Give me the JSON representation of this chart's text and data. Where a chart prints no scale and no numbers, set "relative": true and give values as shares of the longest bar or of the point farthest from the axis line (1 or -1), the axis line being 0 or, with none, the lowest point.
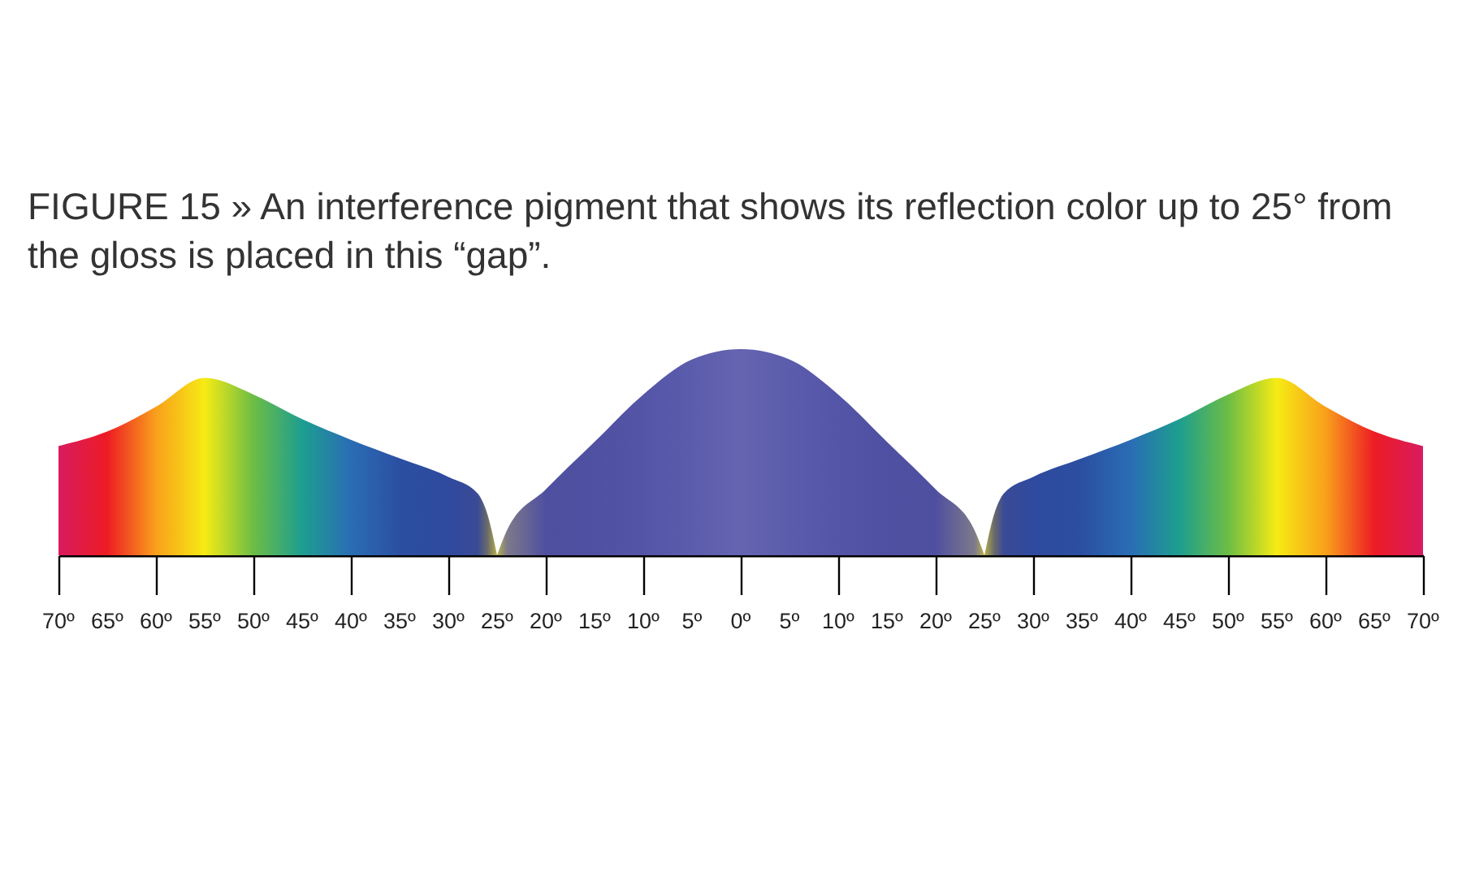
{
  "chart_data": {
    "type": "area",
    "title": "FIGURE 15 » An interference pigment that shows its reflection color up to 25° from the gloss is placed in this “gap”.",
    "relative": true,
    "xlim": [
      -70,
      70
    ],
    "xticks": [
      {
        "value": -70,
        "label": "70º"
      },
      {
        "value": -65,
        "label": "65º"
      },
      {
        "value": -60,
        "label": "60º"
      },
      {
        "value": -55,
        "label": "55º"
      },
      {
        "value": -50,
        "label": "50º"
      },
      {
        "value": -45,
        "label": "45º"
      },
      {
        "value": -40,
        "label": "40º"
      },
      {
        "value": -35,
        "label": "35º"
      },
      {
        "value": -30,
        "label": "30º"
      },
      {
        "value": -25,
        "label": "25º"
      },
      {
        "value": -20,
        "label": "20º"
      },
      {
        "value": -15,
        "label": "15º"
      },
      {
        "value": -10,
        "label": "10º"
      },
      {
        "value": -5,
        "label": "5º"
      },
      {
        "value": 0,
        "label": "0º"
      },
      {
        "value": 5,
        "label": "5º"
      },
      {
        "value": 10,
        "label": "10º"
      },
      {
        "value": 15,
        "label": "15º"
      },
      {
        "value": 20,
        "label": "20º"
      },
      {
        "value": 25,
        "label": "25º"
      },
      {
        "value": 30,
        "label": "30º"
      },
      {
        "value": 35,
        "label": "35º"
      },
      {
        "value": 40,
        "label": "40º"
      },
      {
        "value": 45,
        "label": "45º"
      },
      {
        "value": 50,
        "label": "50º"
      },
      {
        "value": 55,
        "label": "55º"
      },
      {
        "value": 60,
        "label": "60º"
      },
      {
        "value": 65,
        "label": "65º"
      },
      {
        "value": 70,
        "label": "70º"
      }
    ],
    "grid": false,
    "series": [
      {
        "x": [
          -70,
          -65,
          -60,
          -55,
          -50,
          -45,
          -40,
          -35,
          -30,
          -27,
          -26,
          -25
        ],
        "values": [
          0.53,
          0.6,
          0.72,
          0.86,
          0.78,
          0.66,
          0.56,
          0.47,
          0.38,
          0.3,
          0.2,
          0
        ],
        "colors": [
          "#d81b60",
          "#ed1c24",
          "#f9a01b",
          "#f6eb14",
          "#6cbd45",
          "#1d9e8f",
          "#2a6db5",
          "#2b4fa2",
          "#2f4a9e",
          "#3a4a96",
          "#6a6a6a",
          "#b8b04a"
        ]
      },
      {
        "x": [
          -25,
          -24,
          -20,
          -15,
          -10,
          -5,
          0,
          5,
          10,
          15,
          20,
          24,
          25
        ],
        "values": [
          0,
          0.12,
          0.32,
          0.55,
          0.78,
          0.95,
          1,
          0.95,
          0.78,
          0.55,
          0.32,
          0.12,
          0
        ],
        "colors": [
          "#b8b04a",
          "#7d7a8a",
          "#4f4fa0",
          "#5050a2",
          "#5555a8",
          "#5c5cad",
          "#6464b0",
          "#5c5cad",
          "#5555a8",
          "#5050a2",
          "#4f4fa0",
          "#7d7a8a",
          "#b8b04a"
        ]
      },
      {
        "x": [
          25,
          26,
          27,
          30,
          35,
          40,
          45,
          50,
          55,
          60,
          65,
          70
        ],
        "values": [
          0,
          0.2,
          0.3,
          0.38,
          0.47,
          0.56,
          0.66,
          0.78,
          0.86,
          0.72,
          0.6,
          0.53
        ],
        "colors": [
          "#b8b04a",
          "#6a6a6a",
          "#3a4a96",
          "#2f4a9e",
          "#2b4fa2",
          "#2a6db5",
          "#1d9e8f",
          "#6cbd45",
          "#f6eb14",
          "#f9a01b",
          "#ed1c24",
          "#d81b60"
        ]
      }
    ]
  }
}
